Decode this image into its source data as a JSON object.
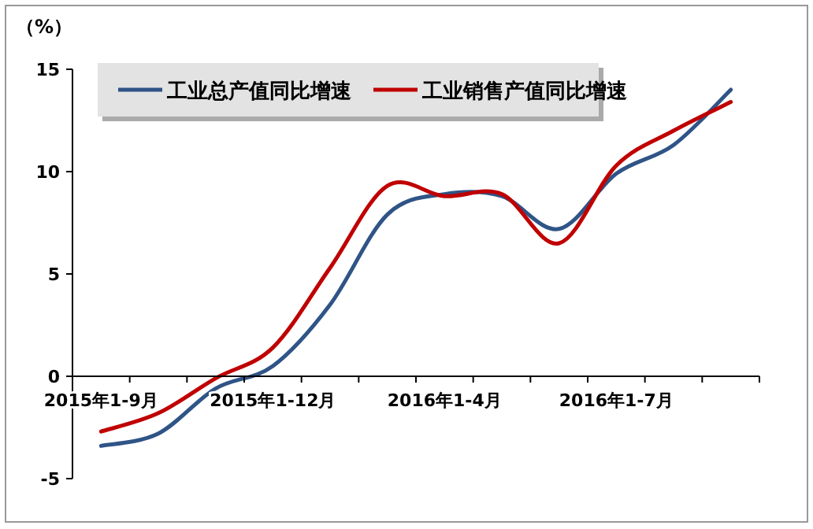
{
  "chart_data": {
    "type": "line",
    "ylabel": "（%）",
    "categories": [
      "2015年1-9月",
      null,
      null,
      "2015年1-12月",
      null,
      null,
      "2016年1-4月",
      null,
      null,
      "2016年1-7月",
      null,
      null
    ],
    "series": [
      {
        "name": "工业总产值同比增速",
        "color": "#2f5487",
        "values": [
          -3.4,
          -2.8,
          -0.6,
          0.5,
          3.5,
          7.9,
          8.9,
          8.8,
          7.2,
          9.9,
          11.3,
          14.0
        ]
      },
      {
        "name": "工业销售产值同比增速",
        "color": "#c00000",
        "values": [
          -2.7,
          -1.8,
          -0.1,
          1.4,
          5.3,
          9.3,
          8.8,
          8.9,
          6.5,
          10.3,
          12.0,
          13.4
        ]
      }
    ],
    "ylim": [
      -5,
      15
    ],
    "yticks": [
      -5,
      0,
      5,
      10,
      15
    ],
    "legend": "top left"
  }
}
